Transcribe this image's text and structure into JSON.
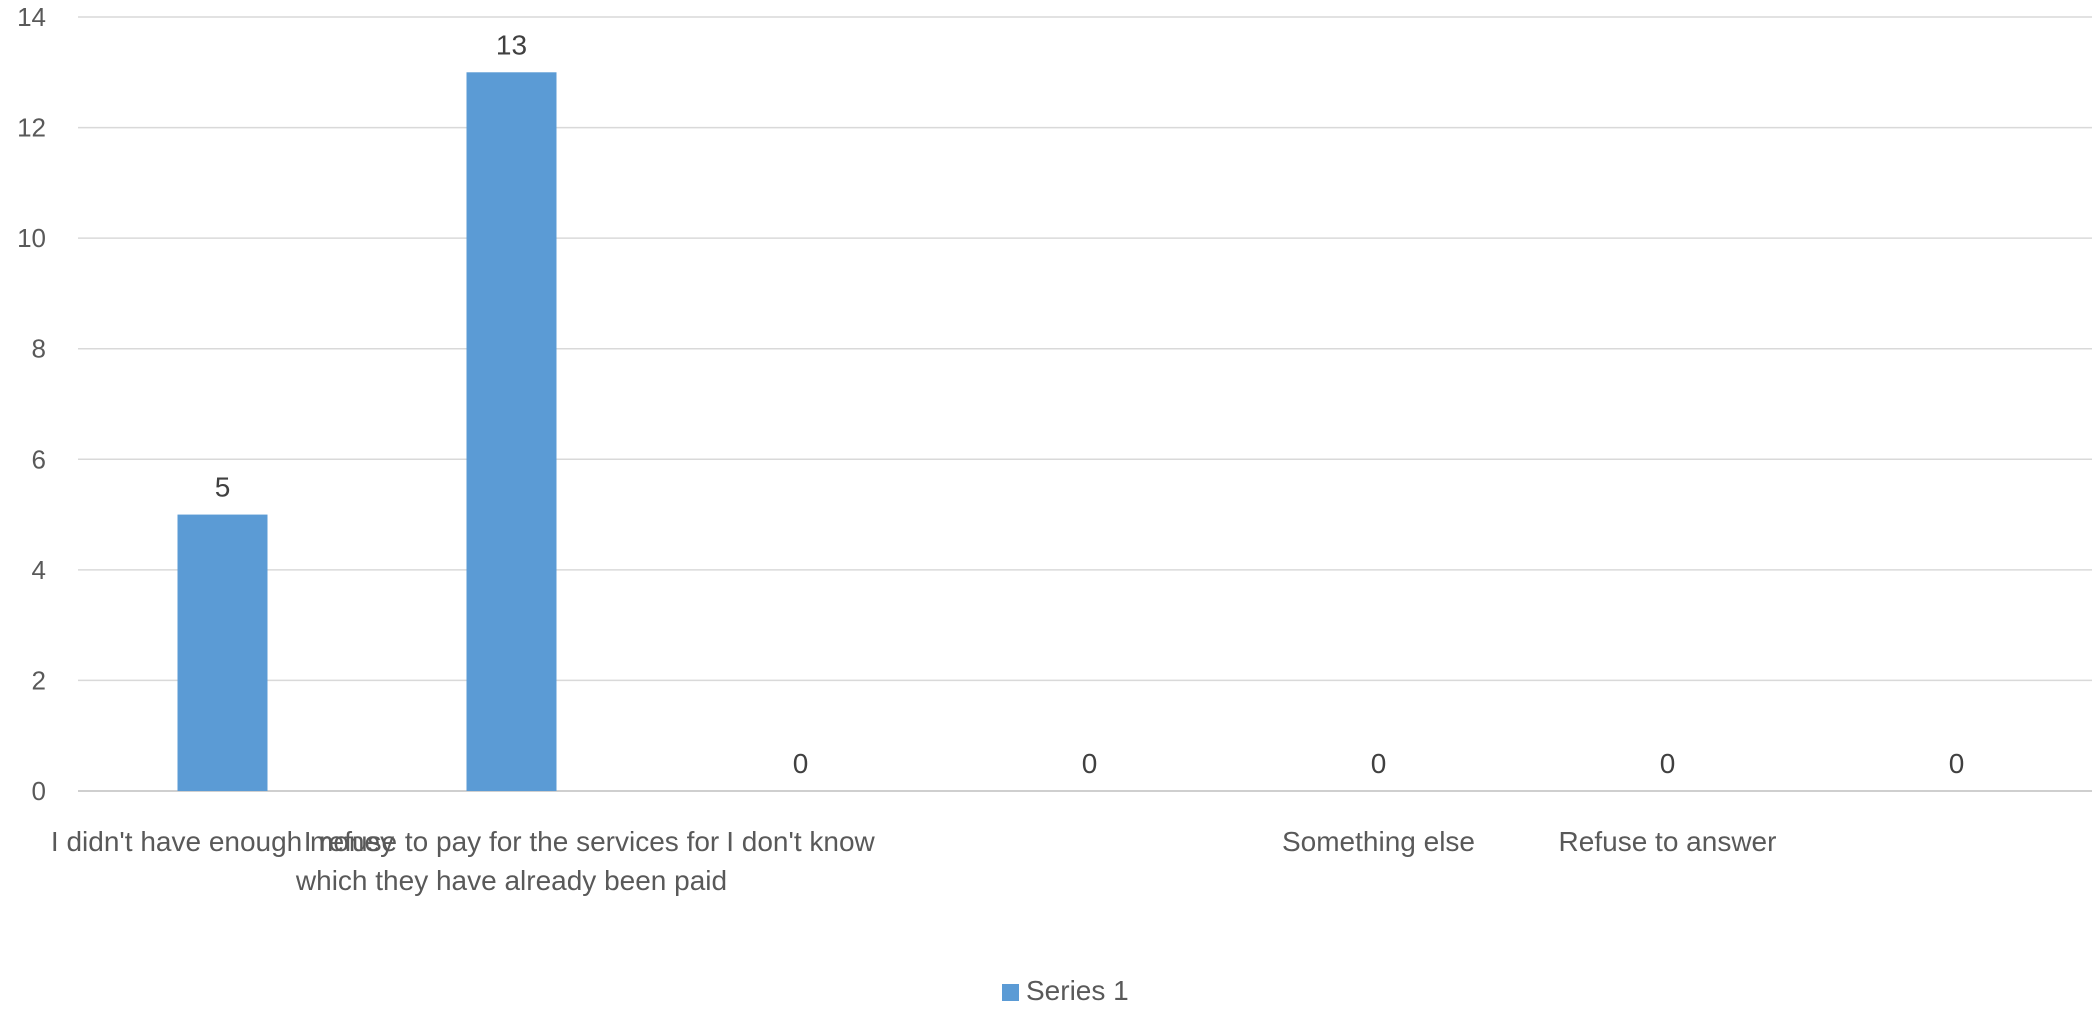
{
  "chart_data": {
    "type": "bar",
    "categories": [
      "I didn't have enough money",
      "I refuse to pay for the services for which they have already been paid",
      "I don't know",
      "",
      "Something else",
      "Refuse to answer",
      "",
      ""
    ],
    "series": [
      {
        "name": "Series 1",
        "values": [
          5,
          13,
          0,
          0,
          0,
          0,
          0,
          0
        ],
        "color": "#5b9bd5"
      }
    ],
    "ylim": [
      0,
      14
    ],
    "yticks": [
      0,
      2,
      4,
      6,
      8,
      10,
      12,
      14
    ],
    "grid": true,
    "data_labels": true,
    "legend": "bottom"
  }
}
